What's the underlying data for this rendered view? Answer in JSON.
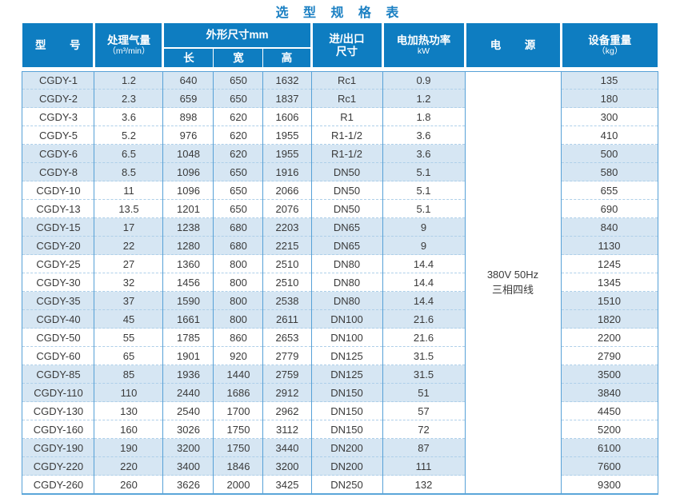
{
  "title": "选 型 规 格 表",
  "colors": {
    "header_blue": "#0e7dc1",
    "title_blue": "#1b80c3",
    "row_tint": "#d6e6f3",
    "grid_line": "#57a1d7",
    "dashed_line": "#aecfe9",
    "text": "#3a3a3a"
  },
  "table": {
    "headers": {
      "model": "型　号",
      "airflow_line1": "处理气量",
      "airflow_line2": "（m³/min）",
      "dims": "外形尺寸mm",
      "dim_length": "长",
      "dim_width": "宽",
      "dim_height": "高",
      "port_line1": "进/出口",
      "port_line2": "尺寸",
      "power_line1": "电加热功率",
      "power_line2": "kW",
      "supply": "电　源",
      "weight_line1": "设备重量",
      "weight_line2": "（kg）"
    },
    "power_supply": {
      "line1": "380V 50Hz",
      "line2": "三相四线"
    },
    "rows": [
      {
        "model": "CGDY-1",
        "airflow": "1.2",
        "length": "640",
        "width": "650",
        "height": "1632",
        "port": "Rc1",
        "power": "0.9",
        "weight": "135"
      },
      {
        "model": "CGDY-2",
        "airflow": "2.3",
        "length": "659",
        "width": "650",
        "height": "1837",
        "port": "Rc1",
        "power": "1.2",
        "weight": "180"
      },
      {
        "model": "CGDY-3",
        "airflow": "3.6",
        "length": "898",
        "width": "620",
        "height": "1606",
        "port": "R1",
        "power": "1.8",
        "weight": "300"
      },
      {
        "model": "CGDY-5",
        "airflow": "5.2",
        "length": "976",
        "width": "620",
        "height": "1955",
        "port": "R1-1/2",
        "power": "3.6",
        "weight": "410"
      },
      {
        "model": "CGDY-6",
        "airflow": "6.5",
        "length": "1048",
        "width": "620",
        "height": "1955",
        "port": "R1-1/2",
        "power": "3.6",
        "weight": "500"
      },
      {
        "model": "CGDY-8",
        "airflow": "8.5",
        "length": "1096",
        "width": "650",
        "height": "1916",
        "port": "DN50",
        "power": "5.1",
        "weight": "580"
      },
      {
        "model": "CGDY-10",
        "airflow": "11",
        "length": "1096",
        "width": "650",
        "height": "2066",
        "port": "DN50",
        "power": "5.1",
        "weight": "655"
      },
      {
        "model": "CGDY-13",
        "airflow": "13.5",
        "length": "1201",
        "width": "650",
        "height": "2076",
        "port": "DN50",
        "power": "5.1",
        "weight": "690"
      },
      {
        "model": "CGDY-15",
        "airflow": "17",
        "length": "1238",
        "width": "680",
        "height": "2203",
        "port": "DN65",
        "power": "9",
        "weight": "840"
      },
      {
        "model": "CGDY-20",
        "airflow": "22",
        "length": "1280",
        "width": "680",
        "height": "2215",
        "port": "DN65",
        "power": "9",
        "weight": "1130"
      },
      {
        "model": "CGDY-25",
        "airflow": "27",
        "length": "1360",
        "width": "800",
        "height": "2510",
        "port": "DN80",
        "power": "14.4",
        "weight": "1245"
      },
      {
        "model": "CGDY-30",
        "airflow": "32",
        "length": "1456",
        "width": "800",
        "height": "2510",
        "port": "DN80",
        "power": "14.4",
        "weight": "1345"
      },
      {
        "model": "CGDY-35",
        "airflow": "37",
        "length": "1590",
        "width": "800",
        "height": "2538",
        "port": "DN80",
        "power": "14.4",
        "weight": "1510"
      },
      {
        "model": "CGDY-40",
        "airflow": "45",
        "length": "1661",
        "width": "800",
        "height": "2611",
        "port": "DN100",
        "power": "21.6",
        "weight": "1820"
      },
      {
        "model": "CGDY-50",
        "airflow": "55",
        "length": "1785",
        "width": "860",
        "height": "2653",
        "port": "DN100",
        "power": "21.6",
        "weight": "2200"
      },
      {
        "model": "CGDY-60",
        "airflow": "65",
        "length": "1901",
        "width": "920",
        "height": "2779",
        "port": "DN125",
        "power": "31.5",
        "weight": "2790"
      },
      {
        "model": "CGDY-85",
        "airflow": "85",
        "length": "1936",
        "width": "1440",
        "height": "2759",
        "port": "DN125",
        "power": "31.5",
        "weight": "3500"
      },
      {
        "model": "CGDY-110",
        "airflow": "110",
        "length": "2440",
        "width": "1686",
        "height": "2912",
        "port": "DN150",
        "power": "51",
        "weight": "3840"
      },
      {
        "model": "CGDY-130",
        "airflow": "130",
        "length": "2540",
        "width": "1700",
        "height": "2962",
        "port": "DN150",
        "power": "57",
        "weight": "4450"
      },
      {
        "model": "CGDY-160",
        "airflow": "160",
        "length": "3026",
        "width": "1750",
        "height": "3112",
        "port": "DN150",
        "power": "72",
        "weight": "5200"
      },
      {
        "model": "CGDY-190",
        "airflow": "190",
        "length": "3200",
        "width": "1750",
        "height": "3440",
        "port": "DN200",
        "power": "87",
        "weight": "6100"
      },
      {
        "model": "CGDY-220",
        "airflow": "220",
        "length": "3400",
        "width": "1846",
        "height": "3200",
        "port": "DN200",
        "power": "111",
        "weight": "7600"
      },
      {
        "model": "CGDY-260",
        "airflow": "260",
        "length": "3626",
        "width": "2000",
        "height": "3425",
        "port": "DN250",
        "power": "132",
        "weight": "9300"
      }
    ]
  }
}
